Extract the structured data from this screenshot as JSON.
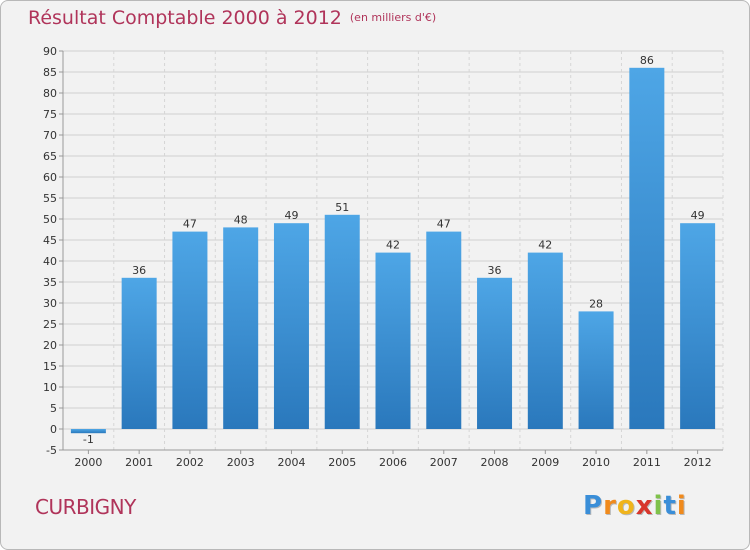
{
  "title": "Résultat Comptable 2000 à 2012",
  "unit_note": "(en milliers d'€)",
  "commune": "CURBIGNY",
  "logo": {
    "letters": [
      "P",
      "r",
      "o",
      "x",
      "i",
      "t",
      "i"
    ],
    "colors": [
      "#3a8ed8",
      "#f08a1c",
      "#f0b41c",
      "#d8362c",
      "#7fc24a",
      "#3a8ed8",
      "#f08a1c"
    ]
  },
  "chart_data": {
    "type": "bar",
    "title": "Résultat Comptable 2000 à 2012",
    "xlabel": "",
    "ylabel": "",
    "ylim": [
      -5,
      90
    ],
    "yticks": [
      -5,
      0,
      5,
      10,
      15,
      20,
      25,
      30,
      35,
      40,
      45,
      50,
      55,
      60,
      65,
      70,
      75,
      80,
      85,
      90
    ],
    "grid": true,
    "categories": [
      "2000",
      "2001",
      "2002",
      "2003",
      "2004",
      "2005",
      "2006",
      "2007",
      "2008",
      "2009",
      "2010",
      "2011",
      "2012"
    ],
    "values": [
      -1,
      36,
      47,
      48,
      49,
      51,
      42,
      47,
      36,
      42,
      28,
      86,
      49
    ],
    "bar_color": "#4ea6e6",
    "bar_color_dark": "#2a78bc"
  }
}
